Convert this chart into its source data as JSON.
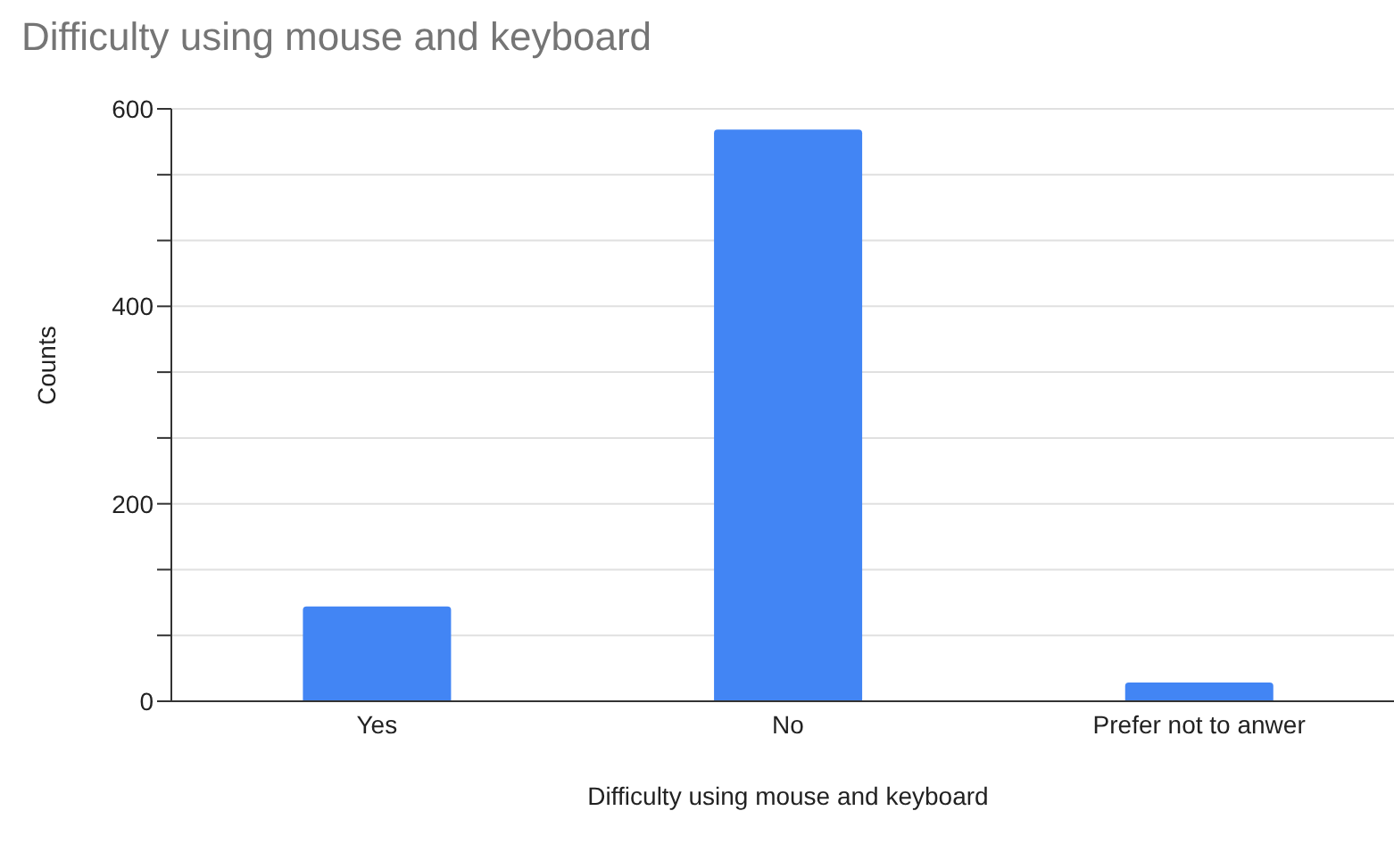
{
  "chart_data": {
    "type": "bar",
    "title": "Difficulty using mouse and keyboard",
    "xlabel": "Difficulty using mouse and keyboard",
    "ylabel": "Counts",
    "categories": [
      "Yes",
      "No",
      "Prefer not to anwer"
    ],
    "values": [
      96,
      579,
      19
    ],
    "color": "#4285f4",
    "ylim": [
      0,
      600
    ],
    "yticks": [
      0,
      {
        "value": 66.67,
        "label": null
      },
      {
        "value": 133.33,
        "label": null
      },
      200,
      {
        "value": 266.67,
        "label": null
      },
      {
        "value": 333.33,
        "label": null
      },
      400,
      {
        "value": 466.67,
        "label": null
      },
      {
        "value": 533.33,
        "label": null
      },
      600
    ],
    "grid": "y",
    "legend": false
  }
}
